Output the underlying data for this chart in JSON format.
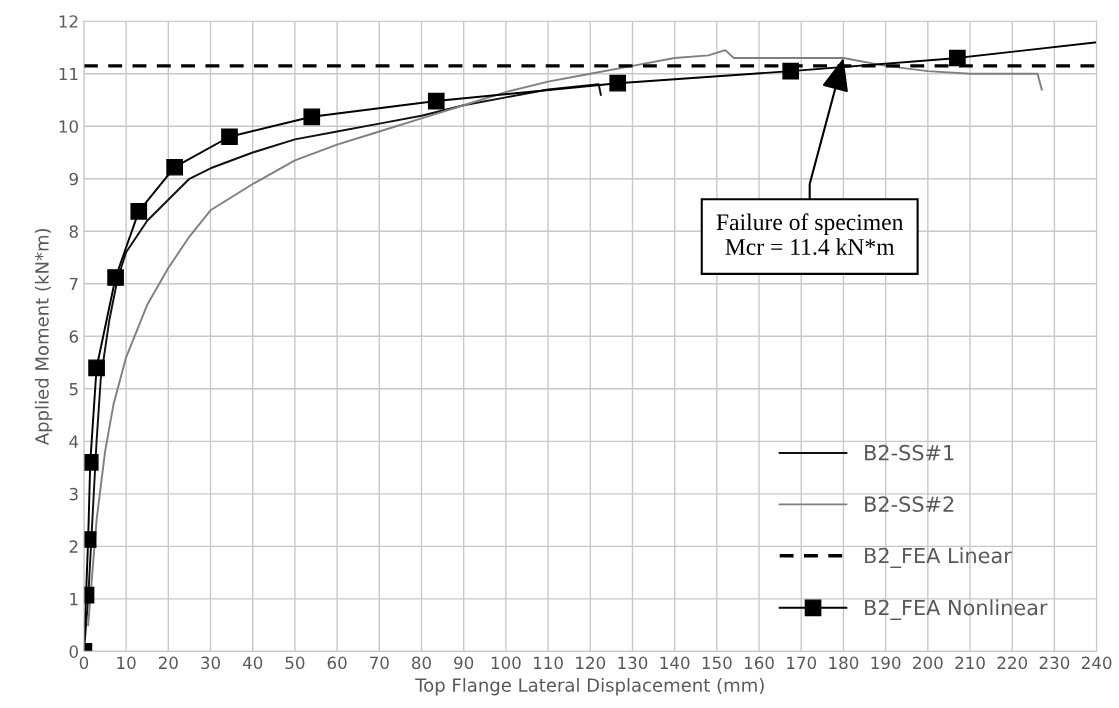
{
  "chart_data": {
    "type": "line",
    "xlabel": "Top Flange Lateral Displacement (mm)",
    "ylabel": "Applied Moment (kN*m)",
    "xlim": [
      0,
      240
    ],
    "xticks": [
      0,
      10,
      20,
      30,
      40,
      50,
      60,
      70,
      80,
      90,
      100,
      110,
      120,
      130,
      140,
      150,
      160,
      170,
      180,
      190,
      200,
      210,
      220,
      230,
      240
    ],
    "ylim": [
      0,
      12
    ],
    "yticks": [
      0,
      1,
      2,
      3,
      4,
      5,
      6,
      7,
      8,
      9,
      10,
      11,
      12
    ],
    "grid": true,
    "legend": "bottom right",
    "series": [
      {
        "name": "B2-SS#1",
        "color": "#111111",
        "marker": "none",
        "line_style": "solid",
        "x": [
          0,
          1,
          2,
          3,
          4,
          6,
          8,
          10,
          15,
          20,
          25,
          30,
          40,
          50,
          60,
          70,
          80,
          90,
          100,
          110,
          122,
          122.5
        ],
        "values": [
          0,
          1,
          2.5,
          4,
          5.2,
          6.3,
          7.1,
          7.6,
          8.2,
          8.6,
          9.0,
          9.2,
          9.5,
          9.75,
          9.9,
          10.05,
          10.2,
          10.4,
          10.55,
          10.7,
          10.8,
          10.6
        ]
      },
      {
        "name": "B2-SS#2",
        "color": "#808080",
        "marker": "none",
        "line_style": "solid",
        "x": [
          1,
          2,
          3,
          5,
          7,
          10,
          15,
          20,
          25,
          30,
          40,
          50,
          60,
          70,
          80,
          90,
          100,
          110,
          120,
          130,
          140,
          148,
          152,
          154,
          160,
          170,
          180,
          190,
          200,
          210,
          220,
          226,
          227
        ],
        "values": [
          0.5,
          1.5,
          2.5,
          3.8,
          4.7,
          5.6,
          6.6,
          7.3,
          7.9,
          8.4,
          8.9,
          9.35,
          9.65,
          9.9,
          10.15,
          10.4,
          10.65,
          10.85,
          11.0,
          11.15,
          11.3,
          11.35,
          11.45,
          11.3,
          11.3,
          11.3,
          11.3,
          11.15,
          11.05,
          11.0,
          11.0,
          11.0,
          10.7
        ]
      },
      {
        "name": "B2_FEA Linear",
        "color": "#000000",
        "marker": "none",
        "line_style": "dashed",
        "x": [
          0,
          240
        ],
        "values": [
          11.15,
          11.15
        ]
      },
      {
        "name": "B2_FEA Nonlinear",
        "color": "#000000",
        "marker": "square",
        "line_style": "solid",
        "x": [
          0,
          0.5,
          1,
          1.5,
          3,
          7.5,
          13,
          21.5,
          34.5,
          54,
          83.5,
          126.5,
          167.5,
          207
        ],
        "values": [
          0,
          1.07,
          2.13,
          3.6,
          5.4,
          7.12,
          8.38,
          9.22,
          9.8,
          10.18,
          10.48,
          10.82,
          11.05,
          11.3
        ]
      },
      {
        "color": "#000000",
        "marker": "none",
        "line_style": "solid",
        "x": [
          207,
          240
        ],
        "values": [
          11.3,
          11.6
        ]
      }
    ],
    "annotations": [
      {
        "text": "Failure of specimen\nMcr = 11.4 kN*m",
        "x": 180,
        "y": 11.3
      }
    ]
  }
}
